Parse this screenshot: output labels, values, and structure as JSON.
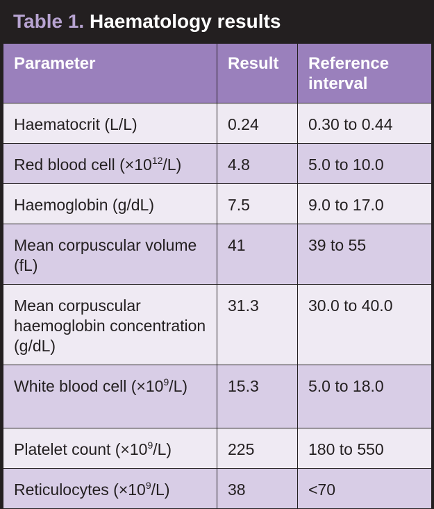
{
  "title": {
    "label": "Table 1.",
    "text": "Haematology results"
  },
  "table": {
    "headers": [
      "Parameter",
      "Result",
      "Reference interval"
    ],
    "rows": [
      {
        "parameter": "Haematocrit (L/L)",
        "result": "0.24",
        "reference": "0.30 to 0.44"
      },
      {
        "parameter_pre": "Red blood cell (×10",
        "parameter_sup": "12",
        "parameter_post": "/L)",
        "result": "4.8",
        "reference": "5.0 to 10.0"
      },
      {
        "parameter": "Haemoglobin (g/dL)",
        "result": "7.5",
        "reference": "9.0 to 17.0"
      },
      {
        "parameter": "Mean corpuscular volume (fL)",
        "result": "41",
        "reference": "39 to 55"
      },
      {
        "parameter": "Mean corpuscular haemoglobin concentration (g/dL)",
        "result": "31.3",
        "reference": "30.0 to 40.0"
      },
      {
        "parameter_pre": "White blood cell (×10",
        "parameter_sup": "9",
        "parameter_post": "/L)",
        "result": "15.3",
        "reference": "5.0 to 18.0"
      },
      {
        "parameter_pre": "Platelet count (×10",
        "parameter_sup": "9",
        "parameter_post": "/L)",
        "result": "225",
        "reference": "180 to 550"
      },
      {
        "parameter_pre": "Reticulocytes (×10",
        "parameter_sup": "9",
        "parameter_post": "/L)",
        "result": "38",
        "reference": "<70"
      }
    ]
  },
  "colors": {
    "background": "#231f20",
    "header_fill": "#9a80bc",
    "title_label": "#b7a3d1",
    "row_light": "#efeaf3",
    "row_dark": "#d8cde6"
  }
}
